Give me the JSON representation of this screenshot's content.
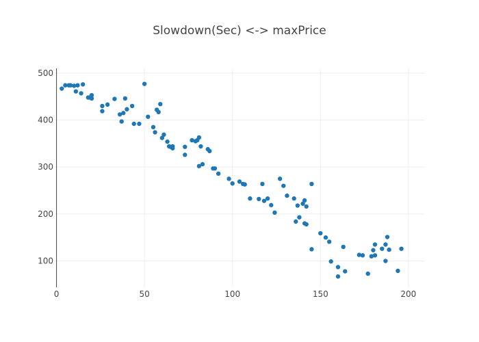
{
  "chart_data": {
    "type": "scatter",
    "title": "Slowdown(Sec) <-> maxPrice",
    "xlabel": "",
    "ylabel": "",
    "xlim": [
      -1,
      209
    ],
    "ylim": [
      44,
      510
    ],
    "x_ticks": [
      0,
      50,
      100,
      150,
      200
    ],
    "y_ticks": [
      100,
      200,
      300,
      400,
      500
    ],
    "grid": true,
    "legend": "none",
    "marker_color": "#1f77b4",
    "grid_color": "#eeeeee",
    "axis_color": "#444444",
    "series": [
      {
        "x": [
          3,
          5,
          7,
          8,
          10,
          11,
          12,
          14,
          15,
          18,
          19,
          20,
          20,
          26,
          26,
          29,
          33,
          36,
          37,
          38,
          39,
          40,
          43,
          44,
          47,
          50,
          52,
          55,
          56,
          57,
          58,
          59,
          60,
          61,
          63,
          64,
          65,
          66,
          66,
          73,
          73,
          77,
          79,
          80,
          81,
          81,
          82,
          83,
          86,
          87,
          89,
          90,
          92,
          98,
          100,
          104,
          106,
          107,
          110,
          115,
          117,
          118,
          120,
          122,
          124,
          127,
          129,
          131,
          135,
          136,
          137,
          138,
          140,
          141,
          141,
          142,
          142,
          145,
          145,
          150,
          153,
          155,
          156,
          160,
          160,
          163,
          164,
          172,
          174,
          177,
          179,
          180,
          181,
          181,
          185,
          187,
          187,
          188,
          189,
          194,
          196
        ],
        "y": [
          467,
          474,
          474,
          474,
          473,
          461,
          474,
          457,
          476,
          448,
          448,
          446,
          453,
          430,
          419,
          433,
          445,
          412,
          397,
          415,
          446,
          423,
          430,
          392,
          392,
          477,
          407,
          385,
          374,
          422,
          417,
          434,
          362,
          369,
          354,
          344,
          343,
          340,
          344,
          326,
          343,
          357,
          355,
          357,
          302,
          363,
          344,
          306,
          338,
          334,
          297,
          297,
          286,
          275,
          265,
          269,
          264,
          263,
          233,
          232,
          264,
          228,
          233,
          219,
          203,
          275,
          260,
          239,
          233,
          184,
          218,
          193,
          222,
          180,
          229,
          216,
          178,
          264,
          125,
          159,
          150,
          141,
          99,
          87,
          67,
          130,
          78,
          113,
          112,
          73,
          110,
          123,
          112,
          135,
          126,
          100,
          135,
          151,
          124,
          79,
          126
        ]
      }
    ]
  }
}
